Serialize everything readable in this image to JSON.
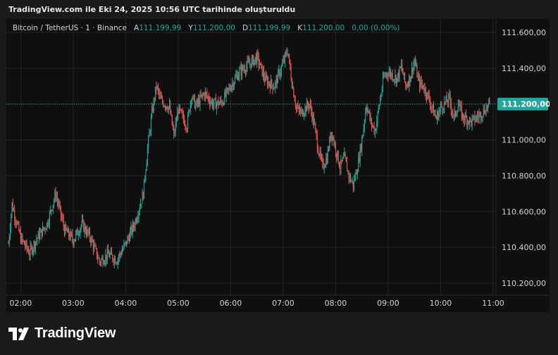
{
  "caption": "TradingView.com ile Eki 24, 2025 10:56 UTC tarihinde oluşturuldu",
  "brand": "TradingView",
  "legend": {
    "symbol": "Bitcoin / TetherUS · 1 · Binance",
    "o_label": "A",
    "o_value": "111.199,99",
    "h_label": "Y",
    "h_value": "111.200,00",
    "l_label": "D",
    "l_value": "111.199,99",
    "c_label": "K",
    "c_value": "111.200,00",
    "change": "0,00 (0,00%)"
  },
  "colors": {
    "up": "#26a69a",
    "down": "#ef5350",
    "price_tag": "#26a69a",
    "background": "#0f0f0f",
    "grid": "#252525"
  },
  "chart_data": {
    "type": "candlestick",
    "last_price": 111200.0,
    "last_price_label": "111.200,00",
    "ylim": [
      110100,
      111660
    ],
    "y_ticks": [
      110200,
      110400,
      110600,
      110800,
      111000,
      111200,
      111400,
      111600
    ],
    "y_tick_labels": [
      "110.200,00",
      "110.400,00",
      "110.600,00",
      "110.800,00",
      "111.000,00",
      "111.200,00",
      "111.400,00",
      "111.600,00"
    ],
    "x_tick_labels": [
      "02:00",
      "03:00",
      "04:00",
      "05:00",
      "06:00",
      "07:00",
      "08:00",
      "09:00",
      "10:00",
      "11:00"
    ],
    "x_start": "01:46",
    "x_end": "10:56",
    "interval_minutes": 1,
    "close_path": [
      [
        "01:46",
        110420
      ],
      [
        "01:50",
        110640
      ],
      [
        "02:00",
        110450
      ],
      [
        "02:10",
        110370
      ],
      [
        "02:20",
        110460
      ],
      [
        "02:30",
        110530
      ],
      [
        "02:40",
        110700
      ],
      [
        "02:45",
        110600
      ],
      [
        "02:50",
        110500
      ],
      [
        "03:00",
        110440
      ],
      [
        "03:10",
        110530
      ],
      [
        "03:20",
        110450
      ],
      [
        "03:30",
        110320
      ],
      [
        "03:40",
        110360
      ],
      [
        "03:50",
        110330
      ],
      [
        "04:00",
        110420
      ],
      [
        "04:10",
        110530
      ],
      [
        "04:20",
        110700
      ],
      [
        "04:25",
        110950
      ],
      [
        "04:30",
        111150
      ],
      [
        "04:35",
        111300
      ],
      [
        "04:40",
        111220
      ],
      [
        "04:50",
        111180
      ],
      [
        "04:55",
        111020
      ],
      [
        "05:00",
        111170
      ],
      [
        "05:10",
        111080
      ],
      [
        "05:15",
        111250
      ],
      [
        "05:20",
        111190
      ],
      [
        "05:30",
        111260
      ],
      [
        "05:40",
        111200
      ],
      [
        "05:50",
        111210
      ],
      [
        "06:00",
        111300
      ],
      [
        "06:10",
        111380
      ],
      [
        "06:20",
        111420
      ],
      [
        "06:30",
        111460
      ],
      [
        "06:40",
        111330
      ],
      [
        "06:50",
        111300
      ],
      [
        "07:00",
        111430
      ],
      [
        "07:05",
        111500
      ],
      [
        "07:10",
        111320
      ],
      [
        "07:15",
        111180
      ],
      [
        "07:20",
        111150
      ],
      [
        "07:30",
        111200
      ],
      [
        "07:35",
        111100
      ],
      [
        "07:40",
        110950
      ],
      [
        "07:45",
        110850
      ],
      [
        "07:50",
        110900
      ],
      [
        "07:55",
        111050
      ],
      [
        "08:00",
        110950
      ],
      [
        "08:05",
        110850
      ],
      [
        "08:10",
        110900
      ],
      [
        "08:15",
        110800
      ],
      [
        "08:20",
        110750
      ],
      [
        "08:25",
        110850
      ],
      [
        "08:30",
        111000
      ],
      [
        "08:35",
        111200
      ],
      [
        "08:40",
        111100
      ],
      [
        "08:45",
        111050
      ],
      [
        "08:50",
        111200
      ],
      [
        "08:55",
        111350
      ],
      [
        "09:00",
        111380
      ],
      [
        "09:10",
        111340
      ],
      [
        "09:15",
        111410
      ],
      [
        "09:20",
        111300
      ],
      [
        "09:25",
        111350
      ],
      [
        "09:30",
        111440
      ],
      [
        "09:35",
        111320
      ],
      [
        "09:40",
        111300
      ],
      [
        "09:45",
        111250
      ],
      [
        "09:50",
        111180
      ],
      [
        "09:55",
        111120
      ],
      [
        "10:00",
        111180
      ],
      [
        "10:10",
        111230
      ],
      [
        "10:15",
        111120
      ],
      [
        "10:20",
        111200
      ],
      [
        "10:25",
        111130
      ],
      [
        "10:35",
        111100
      ],
      [
        "10:45",
        111140
      ],
      [
        "10:56",
        111200
      ]
    ]
  }
}
